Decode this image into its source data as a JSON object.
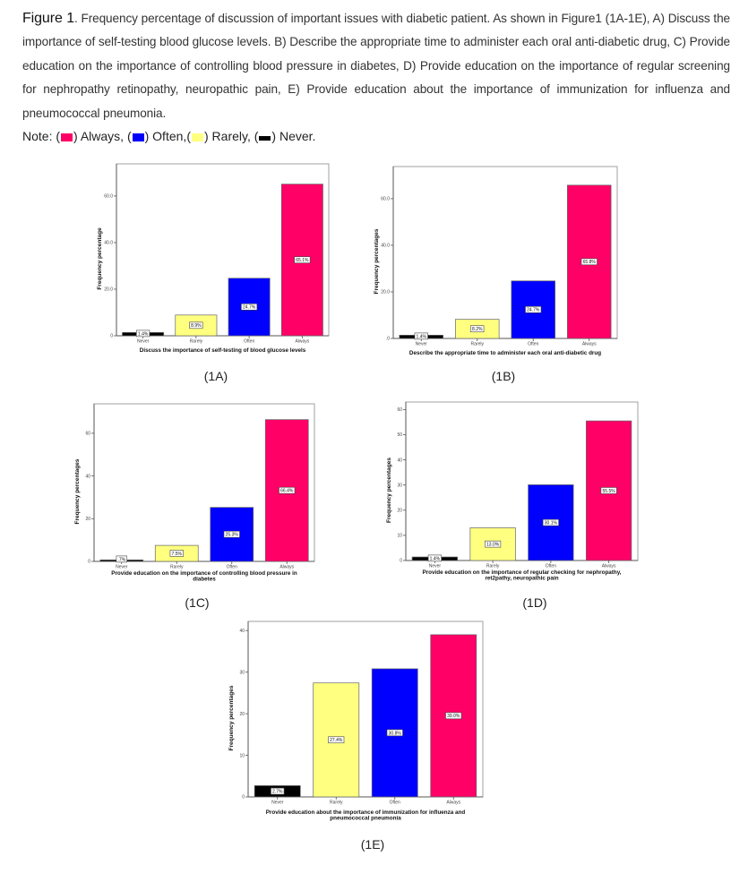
{
  "caption": {
    "fig_label": "Figure 1",
    "text": ". Frequency percentage of discussion of important issues with diabetic patient. As shown in Figure1 (1A-1E), A) Discuss the importance of self-testing blood glucose levels. B) Describe the appropriate time to administer each oral anti-diabetic drug, C) Provide education on the importance of controlling blood pressure in diabetes, D) Provide education on the importance of regular screening for nephropathy retinopathy, neuropathic pain, E) Provide education about the importance of immunization for influenza and pneumococcal pneumonia."
  },
  "note": {
    "prefix": "Note:",
    "items": [
      {
        "label": "Always,",
        "color": "#ff0066"
      },
      {
        "label": "Often,",
        "color": "#0000ff"
      },
      {
        "label": "Rarely,",
        "color": "#ffff80"
      },
      {
        "label": "Never.",
        "color": "#000000"
      }
    ]
  },
  "colors": {
    "Never": "#000000",
    "Rarely": "#ffff80",
    "Often": "#0000ff",
    "Always": "#ff0066"
  },
  "chart_data": [
    {
      "id": "1A",
      "panel_label": "(1A)",
      "type": "bar",
      "categories": [
        "Never",
        "Rarely",
        "Often",
        "Always"
      ],
      "values": [
        1.4,
        8.9,
        24.7,
        65.1
      ],
      "value_labels": [
        "1.4%",
        "8.9%",
        "24.7%",
        "65.1%"
      ],
      "title": "",
      "xlabel": [
        "Discuss the importance of self-testing of blood glucose levels"
      ],
      "ylabel": "Frequency percentage",
      "ylim": [
        0,
        73.8
      ],
      "yticks": [
        0,
        20,
        40,
        60
      ],
      "ytick_labels": [
        "0",
        "20.0",
        "40.0",
        "60.0"
      ],
      "grid": false,
      "legend": "none"
    },
    {
      "id": "1B",
      "panel_label": "(1B)",
      "type": "bar",
      "categories": [
        "Never",
        "Rarely",
        "Often",
        "Always"
      ],
      "values": [
        1.4,
        8.2,
        24.7,
        65.8
      ],
      "value_labels": [
        "1.4%",
        "8.2%",
        "24.7%",
        "65.8%"
      ],
      "title": "",
      "xlabel": [
        "Describe the appropriate time to administer each oral anti-diabetic drug"
      ],
      "ylabel": "Frequency percentages",
      "ylim": [
        0,
        73.8
      ],
      "yticks": [
        0,
        20,
        40,
        60
      ],
      "ytick_labels": [
        ".0",
        "20.0",
        "40.0",
        "60.0"
      ],
      "grid": false,
      "legend": "none"
    },
    {
      "id": "1C",
      "panel_label": "(1C)",
      "type": "bar",
      "categories": [
        "Never",
        "Rarely",
        "Often",
        "Always"
      ],
      "values": [
        0.7,
        7.5,
        25.3,
        66.4
      ],
      "value_labels": [
        ".7%",
        "7.5%",
        "25.3%",
        "66.4%"
      ],
      "title": "",
      "xlabel": [
        "Provide education on the importance of controlling blood pressure in",
        "diabetes"
      ],
      "ylabel": "Frequency percentages",
      "ylim": [
        0,
        73.8
      ],
      "yticks": [
        0,
        20,
        40,
        60
      ],
      "ytick_labels": [
        "0",
        "20",
        "40",
        "60"
      ],
      "grid": false,
      "legend": "none"
    },
    {
      "id": "1D",
      "panel_label": "(1D)",
      "type": "bar",
      "categories": [
        "Never",
        "Rarely",
        "Often",
        "Always"
      ],
      "values": [
        1.4,
        13.0,
        30.1,
        55.5
      ],
      "value_labels": [
        "1.4%",
        "13.0%",
        "30.1%",
        "55.5%"
      ],
      "title": "",
      "xlabel": [
        "Provide education on the importance of regular checking for nephropathy,",
        "ret2pathy, neuropathic pain"
      ],
      "ylabel": "Frequency percentages",
      "ylim": [
        0,
        63
      ],
      "yticks": [
        0,
        10,
        20,
        30,
        40,
        50,
        60
      ],
      "ytick_labels": [
        "0",
        "10",
        "20",
        "30",
        "40",
        "50",
        "60"
      ],
      "grid": false,
      "legend": "none"
    },
    {
      "id": "1E",
      "panel_label": "(1E)",
      "type": "bar",
      "categories": [
        "Never",
        "Rarely",
        "Often",
        "Always"
      ],
      "values": [
        2.7,
        27.4,
        30.8,
        39.0
      ],
      "value_labels": [
        "2.7%",
        "27.4%",
        "30.8%",
        "39.0%"
      ],
      "title": "",
      "xlabel": [
        "Provide education about the importance of immunization for influenza and",
        "pneumococcal pneumonia"
      ],
      "ylabel": "Frequency percentages",
      "ylim": [
        0,
        42.2
      ],
      "yticks": [
        0,
        10,
        20,
        30,
        40
      ],
      "ytick_labels": [
        "0",
        "10",
        "20",
        "30",
        "40"
      ],
      "grid": false,
      "legend": "none"
    }
  ]
}
